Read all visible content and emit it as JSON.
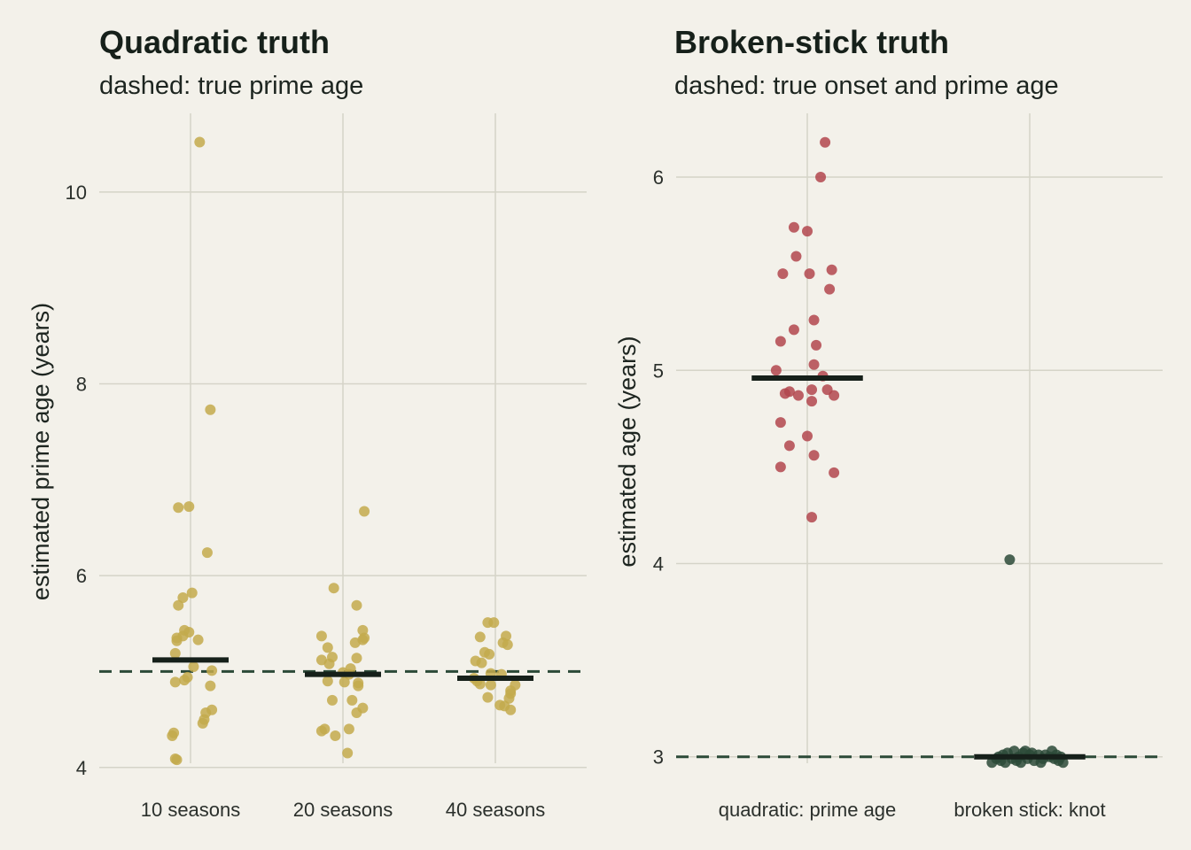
{
  "colors": {
    "background": "#f3f1ea",
    "grid": "#d5d4c8",
    "gold": "#c3aa4c",
    "red": "#b2474e",
    "dark_green": "#2c4a38",
    "summary_bar": "#16201a",
    "reference_line": "#2c4a38"
  },
  "chart_data": [
    {
      "type": "scatter",
      "title": "Quadratic truth",
      "subtitle": "dashed: true prime age",
      "xlabel": "",
      "ylabel": "estimated prime age (years)",
      "categories": [
        "10 seasons",
        "20 seasons",
        "40 seasons"
      ],
      "ylim": [
        3.97,
        10.82
      ],
      "yticks": [
        4,
        6,
        8,
        10
      ],
      "grid": true,
      "reference_lines": [
        5.0
      ],
      "series": [
        {
          "color": "#c3aa4c",
          "points": [
            {
              "cat": 0,
              "jitter": 0.06,
              "y": 10.52
            },
            {
              "cat": 0,
              "jitter": 0.13,
              "y": 7.73
            },
            {
              "cat": 0,
              "jitter": -0.08,
              "y": 6.71
            },
            {
              "cat": 0,
              "jitter": -0.01,
              "y": 6.72
            },
            {
              "cat": 0,
              "jitter": 0.11,
              "y": 6.24
            },
            {
              "cat": 0,
              "jitter": 0.01,
              "y": 5.82
            },
            {
              "cat": 0,
              "jitter": -0.05,
              "y": 5.77
            },
            {
              "cat": 0,
              "jitter": -0.08,
              "y": 5.69
            },
            {
              "cat": 0,
              "jitter": -0.04,
              "y": 5.43
            },
            {
              "cat": 0,
              "jitter": -0.01,
              "y": 5.41
            },
            {
              "cat": 0,
              "jitter": -0.05,
              "y": 5.37
            },
            {
              "cat": 0,
              "jitter": -0.09,
              "y": 5.35
            },
            {
              "cat": 0,
              "jitter": -0.09,
              "y": 5.32
            },
            {
              "cat": 0,
              "jitter": 0.05,
              "y": 5.33
            },
            {
              "cat": 0,
              "jitter": -0.1,
              "y": 5.19
            },
            {
              "cat": 0,
              "jitter": 0.02,
              "y": 5.05
            },
            {
              "cat": 0,
              "jitter": 0.14,
              "y": 5.01
            },
            {
              "cat": 0,
              "jitter": -0.02,
              "y": 4.94
            },
            {
              "cat": 0,
              "jitter": -0.04,
              "y": 4.91
            },
            {
              "cat": 0,
              "jitter": -0.1,
              "y": 4.89
            },
            {
              "cat": 0,
              "jitter": 0.13,
              "y": 4.85
            },
            {
              "cat": 0,
              "jitter": 0.14,
              "y": 4.6
            },
            {
              "cat": 0,
              "jitter": 0.1,
              "y": 4.57
            },
            {
              "cat": 0,
              "jitter": 0.09,
              "y": 4.5
            },
            {
              "cat": 0,
              "jitter": 0.08,
              "y": 4.46
            },
            {
              "cat": 0,
              "jitter": -0.11,
              "y": 4.36
            },
            {
              "cat": 0,
              "jitter": -0.12,
              "y": 4.33
            },
            {
              "cat": 0,
              "jitter": -0.1,
              "y": 4.09
            },
            {
              "cat": 0,
              "jitter": -0.09,
              "y": 4.08
            },
            {
              "cat": 1,
              "jitter": -0.06,
              "y": 5.87
            },
            {
              "cat": 1,
              "jitter": 0.09,
              "y": 5.69
            },
            {
              "cat": 1,
              "jitter": 0.13,
              "y": 5.43
            },
            {
              "cat": 1,
              "jitter": -0.14,
              "y": 5.37
            },
            {
              "cat": 1,
              "jitter": 0.13,
              "y": 5.33
            },
            {
              "cat": 1,
              "jitter": 0.14,
              "y": 5.35
            },
            {
              "cat": 1,
              "jitter": 0.08,
              "y": 5.3
            },
            {
              "cat": 1,
              "jitter": -0.1,
              "y": 5.25
            },
            {
              "cat": 1,
              "jitter": -0.07,
              "y": 5.15
            },
            {
              "cat": 1,
              "jitter": 0.09,
              "y": 5.14
            },
            {
              "cat": 1,
              "jitter": -0.14,
              "y": 5.12
            },
            {
              "cat": 1,
              "jitter": -0.09,
              "y": 5.08
            },
            {
              "cat": 1,
              "jitter": 0.05,
              "y": 5.03
            },
            {
              "cat": 1,
              "jitter": 0.0,
              "y": 4.99
            },
            {
              "cat": 1,
              "jitter": 0.04,
              "y": 4.97
            },
            {
              "cat": 1,
              "jitter": -0.1,
              "y": 4.9
            },
            {
              "cat": 1,
              "jitter": 0.1,
              "y": 4.88
            },
            {
              "cat": 1,
              "jitter": 0.1,
              "y": 4.85
            },
            {
              "cat": 1,
              "jitter": 0.01,
              "y": 4.89
            },
            {
              "cat": 1,
              "jitter": -0.07,
              "y": 4.7
            },
            {
              "cat": 1,
              "jitter": 0.06,
              "y": 4.7
            },
            {
              "cat": 1,
              "jitter": 0.13,
              "y": 4.62
            },
            {
              "cat": 1,
              "jitter": 0.09,
              "y": 4.57
            },
            {
              "cat": 1,
              "jitter": -0.12,
              "y": 4.4
            },
            {
              "cat": 1,
              "jitter": -0.14,
              "y": 4.38
            },
            {
              "cat": 1,
              "jitter": 0.04,
              "y": 4.4
            },
            {
              "cat": 1,
              "jitter": -0.05,
              "y": 4.33
            },
            {
              "cat": 1,
              "jitter": 0.03,
              "y": 4.15
            },
            {
              "cat": 1,
              "jitter": 0.14,
              "y": 6.67
            },
            {
              "cat": 2,
              "jitter": -0.05,
              "y": 5.51
            },
            {
              "cat": 2,
              "jitter": -0.01,
              "y": 5.51
            },
            {
              "cat": 2,
              "jitter": -0.1,
              "y": 5.36
            },
            {
              "cat": 2,
              "jitter": 0.07,
              "y": 5.37
            },
            {
              "cat": 2,
              "jitter": 0.05,
              "y": 5.3
            },
            {
              "cat": 2,
              "jitter": 0.08,
              "y": 5.28
            },
            {
              "cat": 2,
              "jitter": -0.07,
              "y": 5.2
            },
            {
              "cat": 2,
              "jitter": -0.04,
              "y": 5.18
            },
            {
              "cat": 2,
              "jitter": -0.13,
              "y": 5.11
            },
            {
              "cat": 2,
              "jitter": -0.09,
              "y": 5.09
            },
            {
              "cat": 2,
              "jitter": -0.03,
              "y": 4.98
            },
            {
              "cat": 2,
              "jitter": 0.04,
              "y": 4.97
            },
            {
              "cat": 2,
              "jitter": -0.14,
              "y": 4.93
            },
            {
              "cat": 2,
              "jitter": -0.12,
              "y": 4.9
            },
            {
              "cat": 2,
              "jitter": -0.1,
              "y": 4.87
            },
            {
              "cat": 2,
              "jitter": -0.03,
              "y": 4.86
            },
            {
              "cat": 2,
              "jitter": 0.13,
              "y": 4.86
            },
            {
              "cat": 2,
              "jitter": 0.1,
              "y": 4.8
            },
            {
              "cat": 2,
              "jitter": 0.1,
              "y": 4.77
            },
            {
              "cat": 2,
              "jitter": 0.09,
              "y": 4.72
            },
            {
              "cat": 2,
              "jitter": -0.05,
              "y": 4.73
            },
            {
              "cat": 2,
              "jitter": 0.03,
              "y": 4.65
            },
            {
              "cat": 2,
              "jitter": 0.06,
              "y": 4.64
            },
            {
              "cat": 2,
              "jitter": 0.1,
              "y": 4.6
            }
          ]
        }
      ],
      "summary_bars": [
        {
          "cat": 0,
          "y": 5.12
        },
        {
          "cat": 1,
          "y": 4.97
        },
        {
          "cat": 2,
          "y": 4.93
        }
      ]
    },
    {
      "type": "scatter",
      "title": "Broken-stick truth",
      "subtitle": "dashed: true onset and prime age",
      "xlabel": "",
      "ylabel": "estimated age (years)",
      "categories": [
        "quadratic: prime age",
        "broken stick: knot"
      ],
      "ylim": [
        2.93,
        6.33
      ],
      "yticks": [
        3,
        4,
        5,
        6
      ],
      "grid": true,
      "reference_lines": [
        3.0
      ],
      "series": [
        {
          "color": "#b2474e",
          "points": [
            {
              "cat": 0,
              "jitter": 0.08,
              "y": 6.18
            },
            {
              "cat": 0,
              "jitter": 0.06,
              "y": 6.0
            },
            {
              "cat": 0,
              "jitter": -0.06,
              "y": 5.74
            },
            {
              "cat": 0,
              "jitter": 0.0,
              "y": 5.72
            },
            {
              "cat": 0,
              "jitter": -0.05,
              "y": 5.59
            },
            {
              "cat": 0,
              "jitter": -0.11,
              "y": 5.5
            },
            {
              "cat": 0,
              "jitter": 0.01,
              "y": 5.5
            },
            {
              "cat": 0,
              "jitter": 0.11,
              "y": 5.52
            },
            {
              "cat": 0,
              "jitter": 0.1,
              "y": 5.42
            },
            {
              "cat": 0,
              "jitter": 0.03,
              "y": 5.26
            },
            {
              "cat": 0,
              "jitter": -0.06,
              "y": 5.21
            },
            {
              "cat": 0,
              "jitter": -0.12,
              "y": 5.15
            },
            {
              "cat": 0,
              "jitter": 0.04,
              "y": 5.13
            },
            {
              "cat": 0,
              "jitter": 0.03,
              "y": 5.03
            },
            {
              "cat": 0,
              "jitter": -0.14,
              "y": 5.0
            },
            {
              "cat": 0,
              "jitter": 0.07,
              "y": 4.97
            },
            {
              "cat": 0,
              "jitter": 0.02,
              "y": 4.9
            },
            {
              "cat": 0,
              "jitter": 0.09,
              "y": 4.9
            },
            {
              "cat": 0,
              "jitter": -0.08,
              "y": 4.89
            },
            {
              "cat": 0,
              "jitter": -0.1,
              "y": 4.88
            },
            {
              "cat": 0,
              "jitter": -0.04,
              "y": 4.87
            },
            {
              "cat": 0,
              "jitter": 0.12,
              "y": 4.87
            },
            {
              "cat": 0,
              "jitter": 0.02,
              "y": 4.84
            },
            {
              "cat": 0,
              "jitter": -0.12,
              "y": 4.73
            },
            {
              "cat": 0,
              "jitter": 0.0,
              "y": 4.66
            },
            {
              "cat": 0,
              "jitter": -0.08,
              "y": 4.61
            },
            {
              "cat": 0,
              "jitter": 0.03,
              "y": 4.56
            },
            {
              "cat": 0,
              "jitter": -0.12,
              "y": 4.5
            },
            {
              "cat": 0,
              "jitter": 0.12,
              "y": 4.47
            },
            {
              "cat": 0,
              "jitter": 0.02,
              "y": 4.24
            }
          ]
        },
        {
          "color": "#2c4a38",
          "points": [
            {
              "cat": 1,
              "jitter": -0.09,
              "y": 4.02
            },
            {
              "cat": 1,
              "jitter": -0.17,
              "y": 2.97
            },
            {
              "cat": 1,
              "jitter": -0.15,
              "y": 2.99
            },
            {
              "cat": 1,
              "jitter": -0.13,
              "y": 2.98
            },
            {
              "cat": 1,
              "jitter": -0.12,
              "y": 3.01
            },
            {
              "cat": 1,
              "jitter": -0.11,
              "y": 2.97
            },
            {
              "cat": 1,
              "jitter": -0.1,
              "y": 3.02
            },
            {
              "cat": 1,
              "jitter": -0.08,
              "y": 2.99
            },
            {
              "cat": 1,
              "jitter": -0.07,
              "y": 3.03
            },
            {
              "cat": 1,
              "jitter": -0.06,
              "y": 2.98
            },
            {
              "cat": 1,
              "jitter": -0.05,
              "y": 3.0
            },
            {
              "cat": 1,
              "jitter": -0.04,
              "y": 2.97
            },
            {
              "cat": 1,
              "jitter": -0.03,
              "y": 3.02
            },
            {
              "cat": 1,
              "jitter": -0.01,
              "y": 2.99
            },
            {
              "cat": 1,
              "jitter": 0.0,
              "y": 3.01
            },
            {
              "cat": 1,
              "jitter": 0.01,
              "y": 3.02
            },
            {
              "cat": 1,
              "jitter": 0.02,
              "y": 2.98
            },
            {
              "cat": 1,
              "jitter": 0.04,
              "y": 3.01
            },
            {
              "cat": 1,
              "jitter": 0.06,
              "y": 2.99
            },
            {
              "cat": 1,
              "jitter": 0.07,
              "y": 3.01
            },
            {
              "cat": 1,
              "jitter": 0.09,
              "y": 3.0
            },
            {
              "cat": 1,
              "jitter": 0.1,
              "y": 3.03
            },
            {
              "cat": 1,
              "jitter": 0.11,
              "y": 2.99
            },
            {
              "cat": 1,
              "jitter": 0.12,
              "y": 3.01
            },
            {
              "cat": 1,
              "jitter": 0.13,
              "y": 2.98
            },
            {
              "cat": 1,
              "jitter": 0.14,
              "y": 3.0
            },
            {
              "cat": 1,
              "jitter": 0.15,
              "y": 2.97
            },
            {
              "cat": 1,
              "jitter": -0.14,
              "y": 3.0
            },
            {
              "cat": 1,
              "jitter": 0.05,
              "y": 2.97
            },
            {
              "cat": 1,
              "jitter": -0.02,
              "y": 3.03
            }
          ]
        }
      ],
      "summary_bars": [
        {
          "cat": 0,
          "y": 4.96
        },
        {
          "cat": 1,
          "y": 3.0
        }
      ]
    }
  ]
}
